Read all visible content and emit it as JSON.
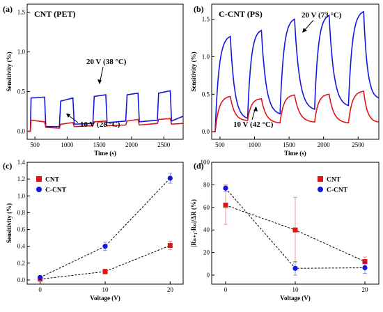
{
  "chart_data": [
    {
      "panel": "(a)",
      "type": "line",
      "title": "CNT (PET)",
      "xlabel": "Time (s)",
      "ylabel": "Sensitivity (%)",
      "xlim": [
        380,
        2800
      ],
      "ylim": [
        -0.1,
        1.6
      ],
      "xticks": [
        500,
        1000,
        1500,
        2000,
        2500
      ],
      "yticks": [
        0.0,
        0.5,
        1.0,
        1.5
      ],
      "tick_labels_x": [
        "500",
        "1000",
        "1500",
        "2000",
        "2500"
      ],
      "tick_labels_y": [
        "0.0",
        "0.5",
        "1.0",
        "1.5"
      ],
      "annotations": [
        "20 V (38 °C)",
        "10 V (28 °C)"
      ],
      "series": [
        {
          "color": "#1515e0",
          "x": [
            380,
            430,
            440,
            650,
            670,
            880,
            900,
            1090,
            1110,
            1400,
            1420,
            1600,
            1620,
            1910,
            1930,
            2100,
            2120,
            2400,
            2420,
            2600,
            2620,
            2800
          ],
          "y": [
            0.0,
            0.0,
            0.42,
            0.43,
            0.06,
            0.06,
            0.38,
            0.42,
            0.09,
            0.1,
            0.44,
            0.46,
            0.11,
            0.13,
            0.46,
            0.48,
            0.12,
            0.14,
            0.48,
            0.51,
            0.13,
            0.19
          ]
        },
        {
          "color": "#e01515",
          "x": [
            380,
            430,
            440,
            650,
            670,
            880,
            900,
            1090,
            1110,
            1400,
            1420,
            1600,
            1620,
            1910,
            1930,
            2100,
            2120,
            2400,
            2420,
            2600,
            2620,
            2800
          ],
          "y": [
            0.0,
            0.0,
            0.14,
            0.12,
            0.05,
            0.04,
            0.09,
            0.11,
            0.06,
            0.07,
            0.12,
            0.13,
            0.07,
            0.08,
            0.13,
            0.15,
            0.08,
            0.1,
            0.15,
            0.16,
            0.09,
            0.1
          ]
        }
      ]
    },
    {
      "panel": "(b)",
      "type": "line",
      "title": "C-CNT (PS)",
      "xlabel": "Time (s)",
      "ylabel": "Sensitivity (%)",
      "xlim": [
        380,
        2800
      ],
      "ylim": [
        -0.1,
        1.7
      ],
      "xticks": [
        500,
        1000,
        1500,
        2000,
        2500
      ],
      "yticks": [
        0.0,
        0.5,
        1.0,
        1.5
      ],
      "tick_labels_x": [
        "500",
        "1000",
        "1500",
        "2000",
        "2500"
      ],
      "tick_labels_y": [
        "0.0",
        "0.5",
        "1.0",
        "1.5"
      ],
      "annotations": [
        "20 V (73 °C)",
        "10 V (42 °C)"
      ],
      "series": [
        {
          "color": "#1515e0",
          "rise": [
            [
              430,
              650,
              0.0,
              1.27
            ],
            [
              900,
              1100,
              0.18,
              1.35
            ],
            [
              1370,
              1580,
              0.24,
              1.5
            ],
            [
              1870,
              2080,
              0.3,
              1.55
            ],
            [
              2360,
              2580,
              0.35,
              1.6
            ]
          ],
          "fall": [
            [
              650,
              900,
              1.27,
              0.18
            ],
            [
              1100,
              1370,
              1.35,
              0.24
            ],
            [
              1580,
              1870,
              1.5,
              0.3
            ],
            [
              2080,
              2360,
              1.55,
              0.35
            ],
            [
              2580,
              2800,
              1.6,
              0.45
            ]
          ]
        },
        {
          "color": "#e01515",
          "rise": [
            [
              430,
              650,
              0.0,
              0.47
            ],
            [
              900,
              1100,
              0.15,
              0.44
            ],
            [
              1370,
              1580,
              0.12,
              0.49
            ],
            [
              1870,
              2080,
              0.13,
              0.5
            ],
            [
              2360,
              2580,
              0.12,
              0.54
            ]
          ],
          "fall": [
            [
              650,
              900,
              0.47,
              0.15
            ],
            [
              1100,
              1370,
              0.44,
              0.12
            ],
            [
              1580,
              1870,
              0.49,
              0.13
            ],
            [
              2080,
              2360,
              0.5,
              0.12
            ],
            [
              2580,
              2800,
              0.54,
              0.13
            ]
          ]
        }
      ]
    },
    {
      "panel": "(c)",
      "type": "scatter",
      "xlabel": "Voltage (V)",
      "ylabel": "Sensitivity (%)",
      "xlim": [
        -2,
        22
      ],
      "ylim": [
        -0.05,
        1.4
      ],
      "xticks": [
        0,
        10,
        20
      ],
      "yticks": [
        0.0,
        0.2,
        0.4,
        0.6,
        0.8,
        1.0,
        1.2,
        1.4
      ],
      "tick_labels_x": [
        "0",
        "10",
        "20"
      ],
      "tick_labels_y": [
        "0.0",
        "0.2",
        "0.4",
        "0.6",
        "0.8",
        "1.0",
        "1.2",
        "1.4"
      ],
      "legend": "top-left",
      "series": [
        {
          "name": "CNT",
          "color": "#e01515",
          "marker": "square",
          "x": [
            0,
            10,
            20
          ],
          "y": [
            0.01,
            0.1,
            0.41
          ],
          "err": [
            0.02,
            0.03,
            0.05
          ]
        },
        {
          "name": "C-CNT",
          "color": "#1515e0",
          "marker": "circle",
          "x": [
            0,
            10,
            20
          ],
          "y": [
            0.03,
            0.4,
            1.21
          ],
          "err": [
            0.02,
            0.05,
            0.06
          ]
        }
      ]
    },
    {
      "panel": "(d)",
      "type": "scatter",
      "xlabel": "Voltage (V)",
      "ylabel": "|Rₙ₊₁-Rₙ|/ΔR (%)",
      "xlim": [
        -2,
        22
      ],
      "ylim": [
        -8,
        100
      ],
      "xticks": [
        0,
        10,
        20
      ],
      "yticks": [
        0,
        20,
        40,
        60,
        80,
        100
      ],
      "tick_labels_x": [
        "0",
        "10",
        "20"
      ],
      "tick_labels_y": [
        "0",
        "20",
        "40",
        "60",
        "80",
        "100"
      ],
      "legend": "top-right",
      "series": [
        {
          "name": "CNT",
          "color": "#e01515",
          "marker": "square",
          "x": [
            0,
            10,
            20
          ],
          "y": [
            62,
            40,
            12
          ],
          "err": [
            17,
            29,
            4
          ]
        },
        {
          "name": "C-CNT",
          "color": "#1515e0",
          "marker": "circle",
          "x": [
            0,
            10,
            20
          ],
          "y": [
            77,
            6,
            6.5
          ],
          "err": [
            3,
            6,
            5
          ]
        }
      ]
    }
  ]
}
